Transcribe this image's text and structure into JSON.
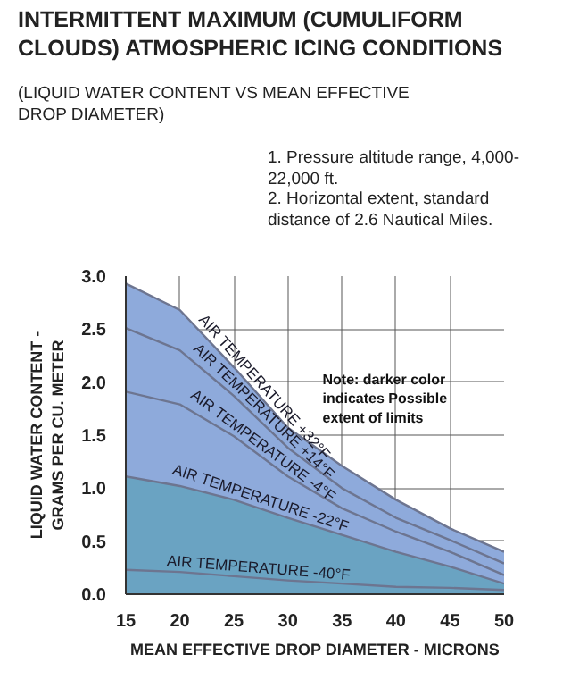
{
  "chart_data": {
    "type": "line",
    "title": "INTERMITTENT MAXIMUM (CUMULIFORM CLOUDS) ATMOSPHERIC ICING CONDITIONS",
    "subtitle": "(LIQUID WATER CONTENT VS MEAN EFFECTIVE DROP DIAMETER)",
    "xlabel": "MEAN EFFECTIVE DROP DIAMETER - MICRONS",
    "ylabel": "LIQUID WATER CONTENT - GRAMS PER CU. METER",
    "annotations": [
      "1. Pressure altitude range, 4,000-22,000 ft.",
      "2. Horizontal extent, standard distance of 2.6 Nautical Miles.",
      "Note: darker color indicates Possible extent of limits"
    ],
    "x": [
      15,
      20,
      25,
      30,
      35,
      40,
      45,
      50
    ],
    "series": [
      {
        "name": "AIR TEMPERATURE +32°F",
        "type": "area",
        "color": "#8eaadb",
        "values": [
          2.93,
          2.68,
          2.14,
          1.57,
          1.21,
          0.89,
          0.62,
          0.4
        ]
      },
      {
        "name": "AIR TEMPERATURE +14°F",
        "color": "#6d7590",
        "values": [
          2.51,
          2.3,
          1.87,
          1.38,
          1.0,
          0.72,
          0.51,
          0.29
        ]
      },
      {
        "name": "AIR TEMPERATURE -4°F",
        "color": "#6d7590",
        "values": [
          1.91,
          1.79,
          1.49,
          1.11,
          0.81,
          0.59,
          0.4,
          0.18
        ]
      },
      {
        "name": "AIR TEMPERATURE -22°F",
        "type": "area",
        "color": "#6aa3c2",
        "values": [
          1.11,
          1.02,
          0.89,
          0.72,
          0.56,
          0.4,
          0.26,
          0.1
        ]
      },
      {
        "name": "AIR TEMPERATURE -40°F",
        "color": "#6d7590",
        "values": [
          0.23,
          0.21,
          0.17,
          0.13,
          0.1,
          0.07,
          0.06,
          0.04
        ]
      }
    ],
    "xlim": [
      15,
      50
    ],
    "xticks": [
      15,
      20,
      25,
      30,
      35,
      40,
      45,
      50
    ],
    "ylim": [
      0,
      3
    ],
    "yticks": [
      {
        "value": 0,
        "label": "0.0"
      },
      {
        "value": 0.5,
        "label": "0.5"
      },
      {
        "value": 1,
        "label": "1.0"
      },
      {
        "value": 1.5,
        "label": "1.5"
      },
      {
        "value": 2,
        "label": "2.0"
      },
      {
        "value": 2.5,
        "label": "2.5"
      },
      {
        "value": 3,
        "label": "3.0"
      }
    ],
    "grid": true
  }
}
